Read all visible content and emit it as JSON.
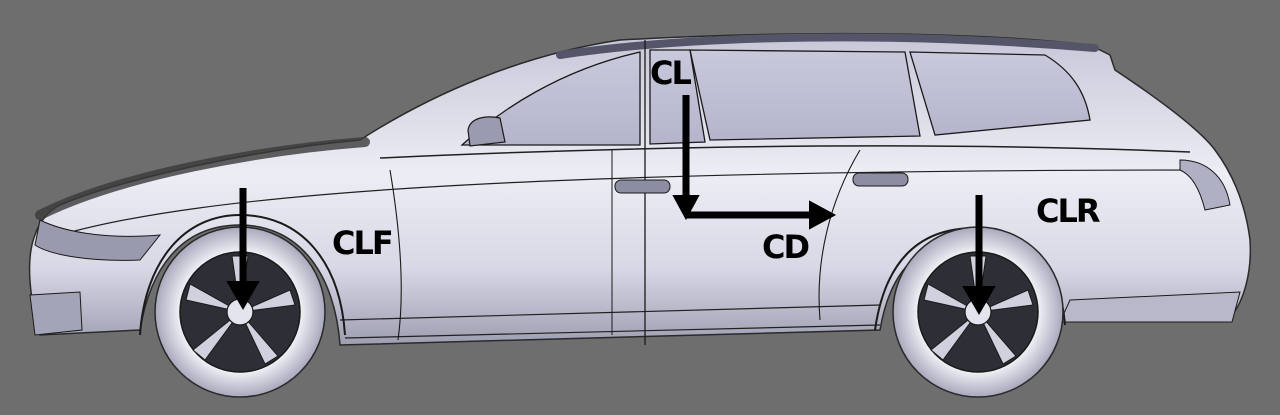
{
  "labels": {
    "lift": "CL",
    "drag": "CD",
    "lift_front": "CLF",
    "lift_rear": "CLR"
  },
  "colors": {
    "background": "#6e6e6e",
    "body": "#dcdcec",
    "glass": "#c4c4d8",
    "tire": "#e6e6f0",
    "rim": "#b8b8c8",
    "arrow": "#000000",
    "edge_lines": "#1a1a1a"
  }
}
